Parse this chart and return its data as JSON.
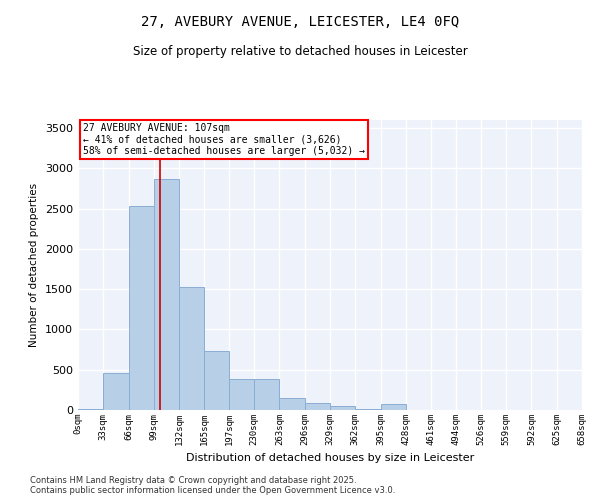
{
  "title": "27, AVEBURY AVENUE, LEICESTER, LE4 0FQ",
  "subtitle": "Size of property relative to detached houses in Leicester",
  "xlabel": "Distribution of detached houses by size in Leicester",
  "ylabel": "Number of detached properties",
  "bar_color": "#b8cfe8",
  "bar_edge_color": "#8aadd4",
  "background_color": "#eef2fa",
  "grid_color": "#ffffff",
  "vline_x": 107,
  "vline_color": "#cc0000",
  "annotation_title": "27 AVEBURY AVENUE: 107sqm",
  "annotation_line1": "← 41% of detached houses are smaller (3,626)",
  "annotation_line2": "58% of semi-detached houses are larger (5,032) →",
  "bin_edges": [
    0,
    33,
    66,
    99,
    132,
    165,
    197,
    230,
    263,
    296,
    329,
    362,
    395,
    428,
    461,
    494,
    526,
    559,
    592,
    625,
    658
  ],
  "bar_heights": [
    10,
    460,
    2530,
    2870,
    1530,
    730,
    390,
    390,
    150,
    90,
    50,
    15,
    80,
    5,
    5,
    5,
    5,
    5,
    5,
    5
  ],
  "ylim": [
    0,
    3600
  ],
  "yticks": [
    0,
    500,
    1000,
    1500,
    2000,
    2500,
    3000,
    3500
  ],
  "xlim": [
    0,
    658
  ],
  "footnote1": "Contains HM Land Registry data © Crown copyright and database right 2025.",
  "footnote2": "Contains public sector information licensed under the Open Government Licence v3.0."
}
